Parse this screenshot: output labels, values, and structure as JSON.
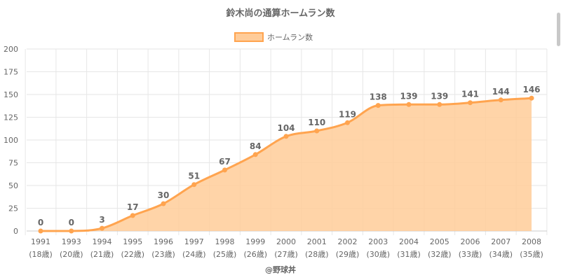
{
  "chart_data": {
    "type": "area",
    "title": "鈴木尚の通算ホームラン数",
    "categories": [
      "1991",
      "1993",
      "1994",
      "1995",
      "1996",
      "1997",
      "1998",
      "1999",
      "2000",
      "2001",
      "2002",
      "2003",
      "2004",
      "2005",
      "2006",
      "2007",
      "2008"
    ],
    "age_labels": [
      "(18歳)",
      "(20歳)",
      "(21歳)",
      "(22歳)",
      "(23歳)",
      "(24歳)",
      "(25歳)",
      "(26歳)",
      "(27歳)",
      "(28歳)",
      "(29歳)",
      "(30歳)",
      "(31歳)",
      "(32歳)",
      "(33歳)",
      "(34歳)",
      "(35歳)"
    ],
    "series": [
      {
        "name": "ホームラン数",
        "values": [
          0,
          0,
          3,
          17,
          30,
          51,
          67,
          84,
          104,
          110,
          119,
          138,
          139,
          139,
          141,
          144,
          146
        ]
      }
    ],
    "ylim": [
      0,
      200
    ],
    "yticks": [
      0,
      25,
      50,
      75,
      100,
      125,
      150,
      175,
      200
    ],
    "grid": true,
    "legend": "top",
    "line_color": "#ffa44f",
    "fill_color": "#ffcc99",
    "marker_color": "#ffa44f"
  },
  "credit": "@野球丼"
}
